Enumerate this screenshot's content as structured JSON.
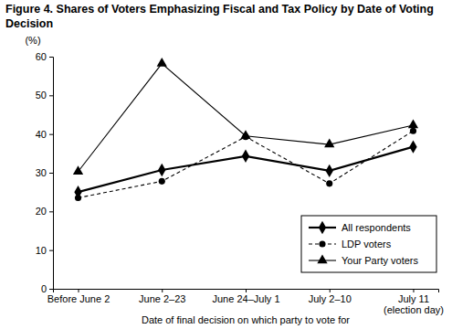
{
  "chart_data": {
    "type": "line",
    "title": "Figure 4. Shares of Voters Emphasizing Fiscal and Tax Policy by Date of Voting Decision",
    "y_label": "(%)",
    "x_label": "Date of final decision on which party to vote for",
    "categories": [
      "Before June 2",
      "June 2–23",
      "June 24–July 1",
      "July 2–10",
      "July 11\n(election day)"
    ],
    "series": [
      {
        "name": "All respondents",
        "color": "#000000",
        "marker": "diamond",
        "line_style": "solid",
        "values": [
          25.0,
          30.7,
          34.3,
          30.5,
          36.7
        ]
      },
      {
        "name": "LDP voters",
        "color": "#000000",
        "marker": "circle",
        "line_style": "dashed",
        "values": [
          23.5,
          27.8,
          39.3,
          27.2,
          40.8
        ]
      },
      {
        "name": "Your Party voters",
        "color": "#000000",
        "marker": "triangle",
        "line_style": "solid",
        "values": [
          30.3,
          58.2,
          39.5,
          37.3,
          42.3
        ]
      }
    ],
    "ylim": [
      0,
      60
    ],
    "yticks": [
      0,
      10,
      20,
      30,
      40,
      50,
      60
    ],
    "grid": false,
    "legend": "lower right"
  }
}
